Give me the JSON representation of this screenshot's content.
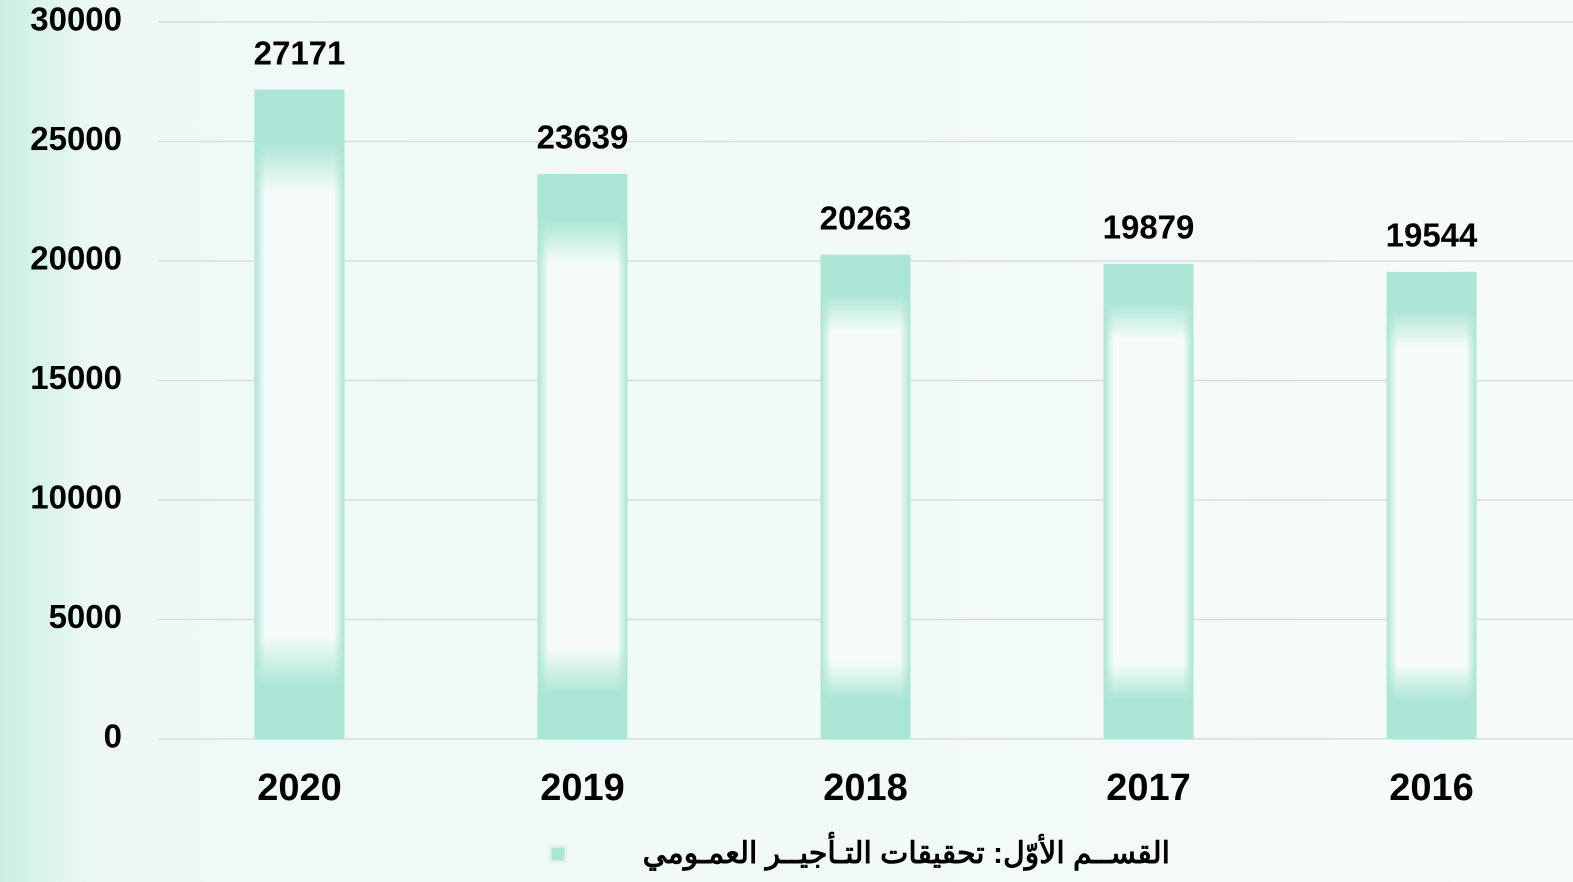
{
  "chart_data": {
    "type": "bar",
    "categories": [
      "2020",
      "2019",
      "2018",
      "2017",
      "2016"
    ],
    "series": [
      {
        "name": "القســم الأوّل: تحقيقات التـأجيــر العمـومي",
        "color": "#abe5d5",
        "values": [
          27171,
          23639,
          20263,
          19879,
          19544
        ]
      }
    ],
    "ylim": [
      0,
      30000
    ],
    "yticks": [
      0,
      5000,
      10000,
      15000,
      20000,
      25000,
      30000
    ],
    "grid": true,
    "legend": "bottom"
  }
}
